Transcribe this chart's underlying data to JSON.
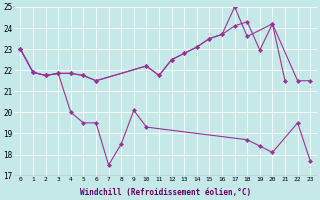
{
  "xlabel": "Windchill (Refroidissement éolien,°C)",
  "xlim": [
    -0.5,
    23.5
  ],
  "ylim": [
    17,
    25
  ],
  "yticks": [
    17,
    18,
    19,
    20,
    21,
    22,
    23,
    24,
    25
  ],
  "xticks": [
    0,
    1,
    2,
    3,
    4,
    5,
    6,
    7,
    8,
    9,
    10,
    11,
    12,
    13,
    14,
    15,
    16,
    17,
    18,
    19,
    20,
    21,
    22,
    23
  ],
  "bg_color": "#c5e8e8",
  "line_color": "#993399",
  "grid_color": "#aadddd",
  "series": [
    {
      "x": [
        0,
        1,
        2,
        3,
        4,
        5,
        6,
        10,
        11,
        12,
        13,
        14,
        15,
        16,
        17,
        18,
        19,
        20,
        21
      ],
      "y": [
        23.0,
        21.9,
        21.75,
        21.85,
        21.85,
        21.75,
        21.5,
        22.2,
        21.75,
        22.5,
        22.8,
        23.1,
        23.5,
        23.7,
        24.1,
        24.3,
        22.95,
        24.2,
        21.5
      ]
    },
    {
      "x": [
        0,
        1,
        2,
        3,
        4,
        5,
        6,
        10,
        11,
        12,
        13,
        14,
        15,
        16,
        17,
        18,
        20,
        22,
        23
      ],
      "y": [
        23.0,
        21.9,
        21.75,
        21.85,
        21.85,
        21.75,
        21.5,
        22.2,
        21.75,
        22.5,
        22.8,
        23.1,
        23.5,
        23.7,
        25.0,
        23.6,
        24.2,
        21.5,
        21.5
      ]
    },
    {
      "x": [
        0,
        1,
        2,
        3,
        4,
        5,
        6,
        7,
        8,
        9,
        10,
        18,
        19,
        20,
        22,
        23
      ],
      "y": [
        23.0,
        21.9,
        21.75,
        21.85,
        20.0,
        19.5,
        19.5,
        17.5,
        18.5,
        20.1,
        19.3,
        18.7,
        18.4,
        18.1,
        19.5,
        17.7
      ]
    }
  ]
}
